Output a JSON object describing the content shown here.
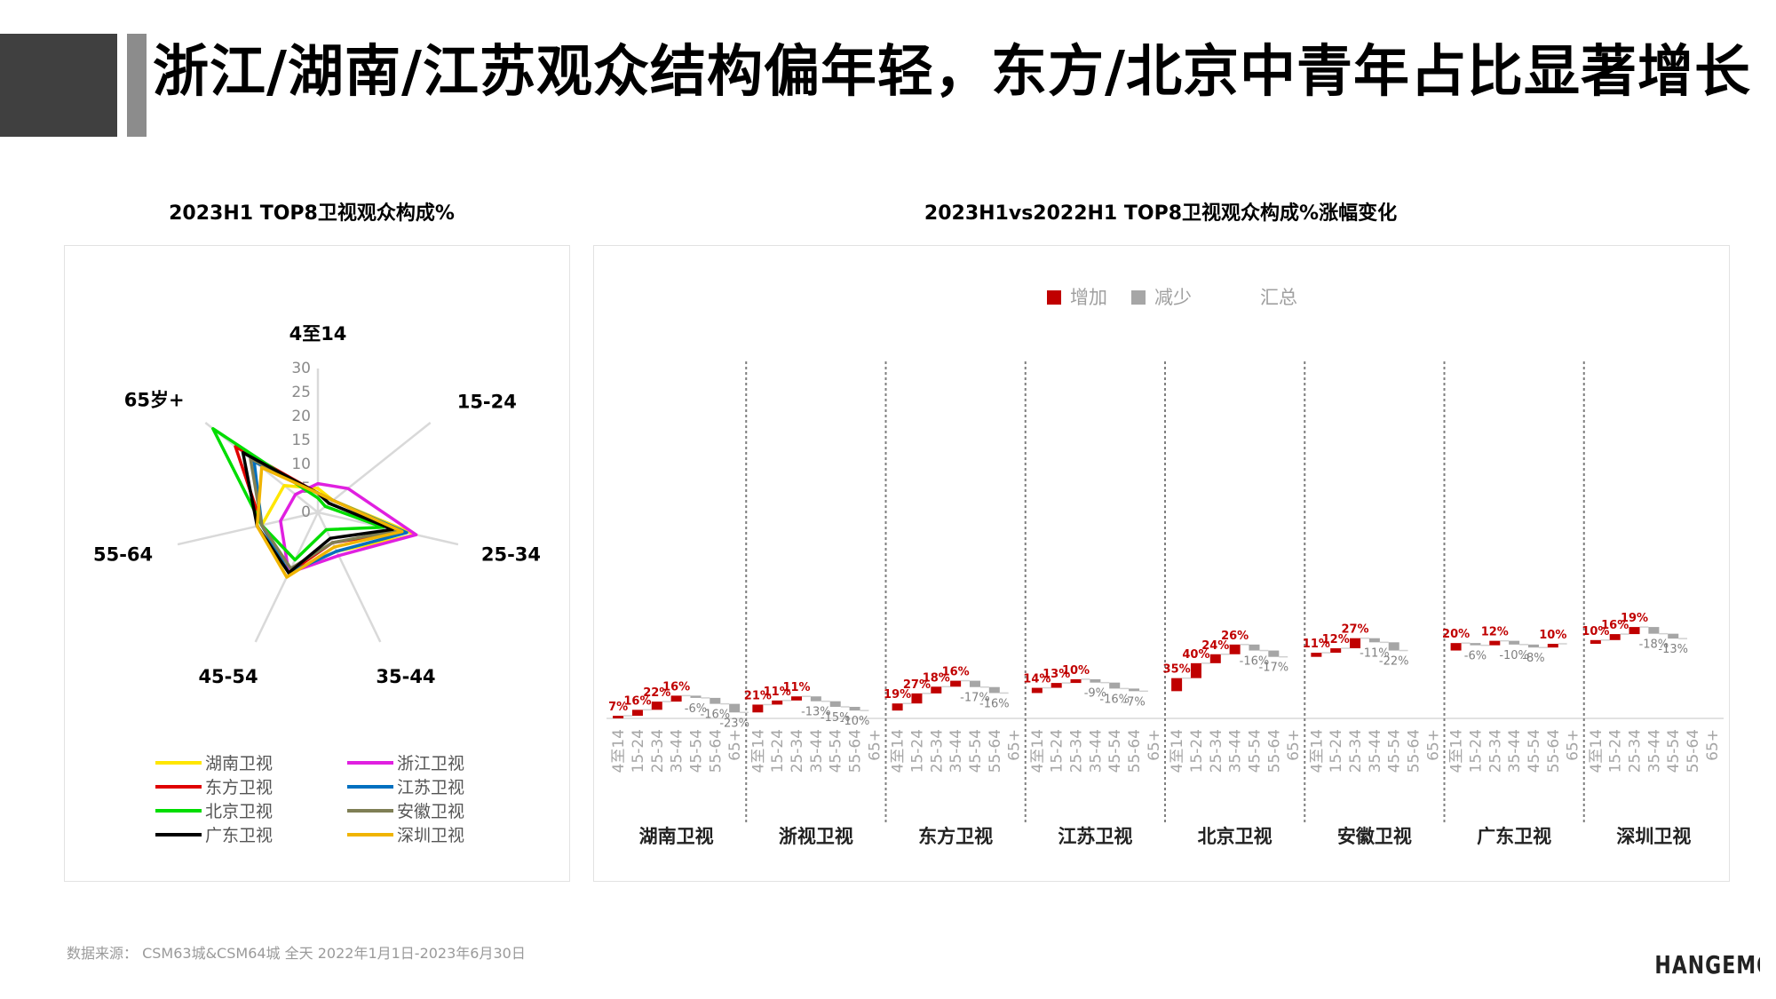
{
  "page": {
    "title": "浙江/湖南/江苏观众结构偏年轻，东方/北京中青年占比显著增长",
    "footer": "数据来源： CSM63城&CSM64城 全天 2022年1月1日-2023年6月30日",
    "logo_text": "CHANGEMO",
    "accent_dark": "#404040",
    "accent_gray": "#8c8c8c"
  },
  "chart_data": [
    {
      "type": "radar",
      "title": "2023H1 TOP8卫视观众构成%",
      "axes": [
        "4至14",
        "15-24",
        "25-34",
        "35-44",
        "45-54",
        "55-64",
        "65岁+"
      ],
      "radial_ticks": [
        "0",
        "5",
        "10",
        "15",
        "20",
        "25",
        "30"
      ],
      "rmax": 30,
      "legend_position": "bottom",
      "series": [
        {
          "name": "湖南卫视",
          "color": "#ffe600",
          "values": [
            5,
            4,
            21,
            9,
            14,
            12,
            9
          ]
        },
        {
          "name": "浙江卫视",
          "color": "#e020e0",
          "values": [
            6,
            8,
            21,
            10,
            14,
            8,
            6
          ]
        },
        {
          "name": "东方卫视",
          "color": "#e00000",
          "values": [
            4,
            4,
            18,
            7,
            14,
            12,
            22
          ]
        },
        {
          "name": "江苏卫视",
          "color": "#0070c0",
          "values": [
            4,
            4,
            19,
            9,
            14,
            12,
            17
          ]
        },
        {
          "name": "北京卫视",
          "color": "#00dd00",
          "values": [
            3,
            2,
            14,
            4,
            11,
            12,
            28
          ]
        },
        {
          "name": "安徽卫视",
          "color": "#7f7f55",
          "values": [
            4,
            3,
            17,
            7,
            13,
            12,
            18
          ]
        },
        {
          "name": "广东卫视",
          "color": "#000000",
          "values": [
            4,
            3,
            16,
            6,
            14,
            13,
            20
          ]
        },
        {
          "name": "深圳卫视",
          "color": "#f0b400",
          "values": [
            4,
            4,
            18,
            8,
            15,
            13,
            15
          ]
        }
      ]
    },
    {
      "type": "waterfall",
      "title": "2023H1vs2022H1 TOP8卫视观众构成%涨幅变化",
      "legend": [
        {
          "label": "增加",
          "color": "#c00000"
        },
        {
          "label": "减少",
          "color": "#a6a6a6"
        },
        {
          "label": "汇总",
          "color": ""
        }
      ],
      "legend_position": "top",
      "age_labels": [
        "4至14",
        "15-24",
        "25-34",
        "35-44",
        "45-54",
        "55-64",
        "65+"
      ],
      "groups": [
        {
          "name": "湖南卫视",
          "changes": [
            7,
            16,
            22,
            16,
            -6,
            -16,
            -23
          ]
        },
        {
          "name": "浙视卫视",
          "changes": [
            21,
            11,
            11,
            -13,
            -15,
            -10
          ]
        },
        {
          "name": "东方卫视",
          "changes": [
            19,
            27,
            18,
            16,
            -17,
            -16
          ]
        },
        {
          "name": "江苏卫视",
          "changes": [
            14,
            13,
            10,
            -9,
            -16,
            -7
          ]
        },
        {
          "name": "北京卫视",
          "changes": [
            35,
            40,
            24,
            26,
            -16,
            -17
          ]
        },
        {
          "name": "安徽卫视",
          "changes": [
            11,
            12,
            27,
            -11,
            -22
          ]
        },
        {
          "name": "广东卫视",
          "changes": [
            20,
            -6,
            12,
            -10,
            -8,
            10
          ]
        },
        {
          "name": "深圳卫视",
          "changes": [
            10,
            16,
            19,
            -18,
            -13
          ]
        }
      ],
      "data_labels": [
        [
          "7%",
          "16%",
          "22%",
          "16%",
          "-6%",
          "-16%",
          "-23%"
        ],
        [
          "21%",
          "11%",
          "11%",
          "-13%",
          "-15%",
          "-10%"
        ],
        [
          "19%",
          "27%",
          "18%",
          "16%",
          "-17%",
          "-16%"
        ],
        [
          "14%",
          "13%",
          "10%",
          "-9%",
          "-16%",
          "-7%"
        ],
        [
          "35%",
          "40%",
          "24%",
          "26%",
          "-16%",
          "-17%"
        ],
        [
          "11%",
          "12%",
          "27%",
          "-11%",
          "-22%"
        ],
        [
          "20%",
          "-6%",
          "12%",
          "-10%",
          "-8%",
          "10%"
        ],
        [
          "10%",
          "16%",
          "19%",
          "-18%",
          "-13%"
        ]
      ]
    }
  ]
}
